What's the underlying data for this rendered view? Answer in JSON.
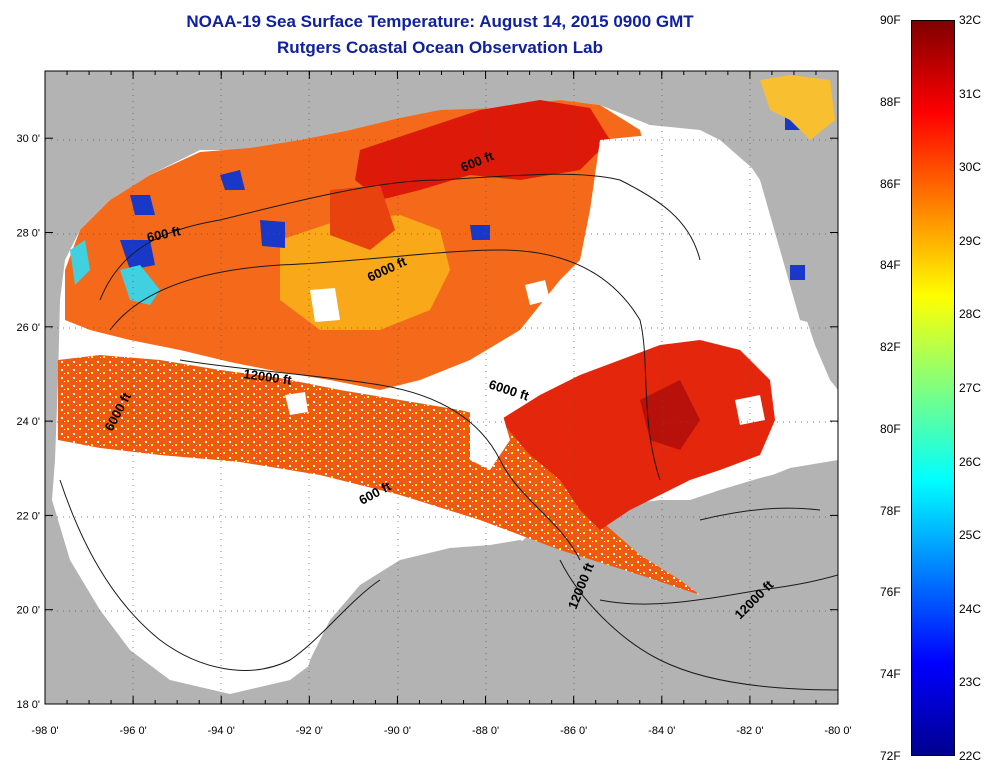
{
  "title": {
    "line1": "NOAA-19 Sea Surface Temperature:  August 14, 2015 0900 GMT",
    "line2": "Rutgers Coastal Ocean Observation Lab"
  },
  "axes": {
    "lon_ticks": [
      "-98 0'",
      "-96 0'",
      "-94 0'",
      "-92 0'",
      "-90 0'",
      "-88 0'",
      "-86 0'",
      "-84 0'",
      "-82 0'",
      "-80 0'"
    ],
    "lat_ticks": [
      "18 0'",
      "20 0'",
      "22 0'",
      "24 0'",
      "26 0'",
      "28 0'",
      "30 0'"
    ]
  },
  "contours": {
    "labels": [
      "600 ft",
      "600 ft",
      "6000 ft",
      "12000 ft",
      "6000 ft",
      "6000 ft",
      "600 ft",
      "12000 ft",
      "12000 ft"
    ]
  },
  "colorbar": {
    "fahrenheit": [
      "90F",
      "88F",
      "86F",
      "84F",
      "82F",
      "80F",
      "78F",
      "76F",
      "74F",
      "72F"
    ],
    "celsius": [
      "32C",
      "31C",
      "30C",
      "29C",
      "28C",
      "27C",
      "26C",
      "25C",
      "24C",
      "23C",
      "22C"
    ],
    "colors": [
      "#00008f",
      "#0000ff",
      "#007fff",
      "#00ffff",
      "#7fff7f",
      "#ffff00",
      "#ff7f00",
      "#ff0000",
      "#7f0000"
    ]
  },
  "colors": {
    "land": "#b3b3b3",
    "nodata": "#ffffff",
    "title": "#1020a0"
  }
}
